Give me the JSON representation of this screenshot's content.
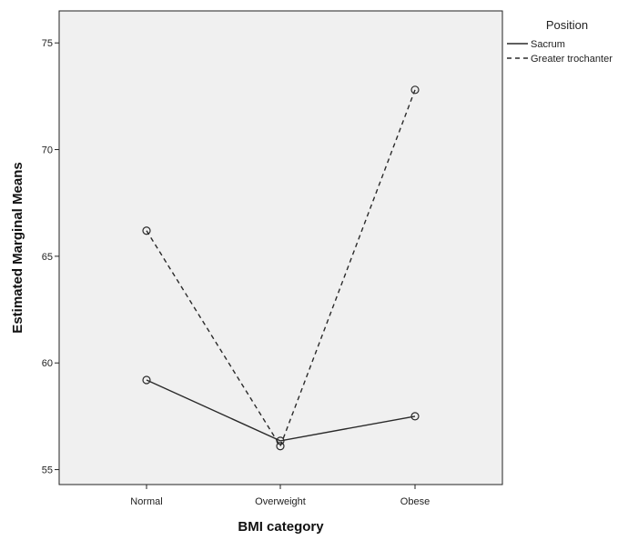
{
  "chart_data": {
    "type": "line",
    "categories": [
      "Normal",
      "Overweight",
      "Obese"
    ],
    "series": [
      {
        "name": "Sacrum",
        "values": [
          59.2,
          56.35,
          57.5
        ],
        "line_style": "solid"
      },
      {
        "name": "Greater trochanter",
        "values": [
          66.2,
          56.1,
          72.8
        ],
        "line_style": "dashed"
      }
    ],
    "xlabel": "BMI category",
    "ylabel": "Estimated Marginal Means",
    "ylim": [
      54.3,
      76.5
    ],
    "yticks": [
      55,
      60,
      65,
      70,
      75
    ],
    "legend": {
      "title": "Position",
      "placement": "right"
    },
    "grid": false,
    "marker": "open-circle",
    "colors": {
      "plot_background": "#f0f0f0",
      "line": "#2a2a2a",
      "frame": "#222222"
    }
  }
}
